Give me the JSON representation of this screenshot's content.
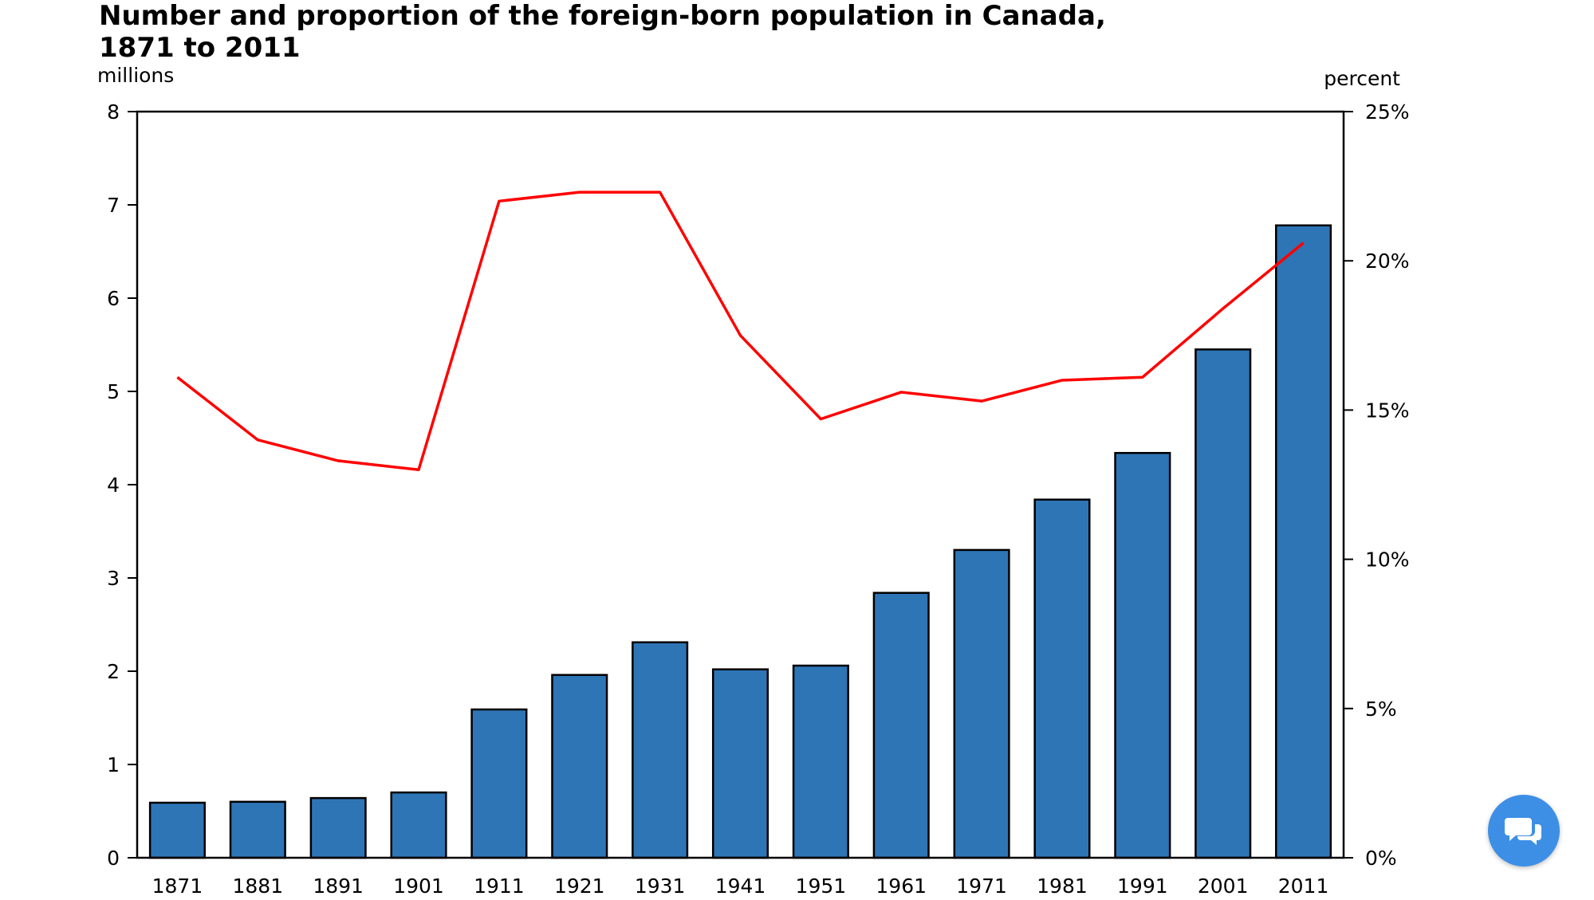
{
  "chart_data": {
    "type": "bar",
    "title_line1": "Number and proportion of the foreign-born population in Canada,",
    "title_line2": "1871 to 2011",
    "left_axis_unit": "millions",
    "right_axis_unit": "percent",
    "categories": [
      "1871",
      "1881",
      "1891",
      "1901",
      "1911",
      "1921",
      "1931",
      "1941",
      "1951",
      "1961",
      "1971",
      "1981",
      "1991",
      "2001",
      "2011"
    ],
    "ylim_left": [
      0,
      8
    ],
    "yticks_left": [
      "0",
      "1",
      "2",
      "3",
      "4",
      "5",
      "6",
      "7",
      "8"
    ],
    "ylim_right": [
      0,
      25
    ],
    "yticks_right": [
      "0%",
      "5%",
      "10%",
      "15%",
      "20%",
      "25%"
    ],
    "series": [
      {
        "type": "bar",
        "axis": "left",
        "color": "#2e75b6",
        "values": [
          0.59,
          0.6,
          0.64,
          0.7,
          1.59,
          1.96,
          2.31,
          2.02,
          2.06,
          2.84,
          3.3,
          3.84,
          4.34,
          5.45,
          6.78
        ]
      },
      {
        "type": "line",
        "axis": "right",
        "color": "#ff0000",
        "values": [
          16.1,
          14.0,
          13.3,
          13.0,
          22.0,
          22.3,
          22.3,
          17.5,
          14.7,
          15.6,
          15.3,
          16.0,
          16.1,
          18.4,
          20.6
        ]
      }
    ],
    "grid": false,
    "legend": "none"
  },
  "chat_icon": "chat-bubbles-icon"
}
